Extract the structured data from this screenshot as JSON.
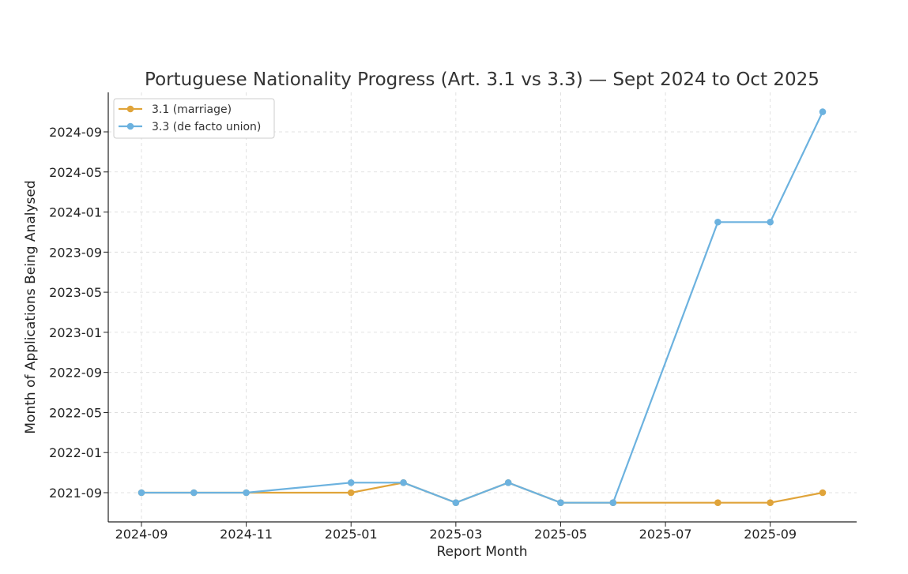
{
  "chart_data": {
    "type": "line",
    "title": "Portuguese Nationality Progress (Art. 3.1 vs 3.3) — Sept 2024 to Oct 2025",
    "xlabel": "Report Month",
    "ylabel": "Month of Applications Being Analysed",
    "x_ticks": [
      "2024-09",
      "2024-11",
      "2025-01",
      "2025-03",
      "2025-05",
      "2025-07",
      "2025-09"
    ],
    "y_ticks": [
      "2021-09",
      "2022-01",
      "2022-05",
      "2022-09",
      "2023-01",
      "2023-05",
      "2023-09",
      "2024-01",
      "2024-05",
      "2024-09"
    ],
    "grid": true,
    "legend_position": "top-left",
    "series": [
      {
        "name": "3.1 (marriage)",
        "color": "#e0a43a",
        "points": [
          {
            "x": "2024-09",
            "y": "2021-09"
          },
          {
            "x": "2024-10",
            "y": "2021-09"
          },
          {
            "x": "2024-11",
            "y": "2021-09"
          },
          {
            "x": "2025-01",
            "y": "2021-09"
          },
          {
            "x": "2025-02",
            "y": "2021-10"
          },
          {
            "x": "2025-03",
            "y": "2021-08"
          },
          {
            "x": "2025-04",
            "y": "2021-10"
          },
          {
            "x": "2025-05",
            "y": "2021-08"
          },
          {
            "x": "2025-06",
            "y": "2021-08"
          },
          {
            "x": "2025-08",
            "y": "2021-08"
          },
          {
            "x": "2025-09",
            "y": "2021-08"
          },
          {
            "x": "2025-10",
            "y": "2021-09"
          }
        ]
      },
      {
        "name": "3.3 (de facto union)",
        "color": "#6cb2df",
        "points": [
          {
            "x": "2024-09",
            "y": "2021-09"
          },
          {
            "x": "2024-10",
            "y": "2021-09"
          },
          {
            "x": "2024-11",
            "y": "2021-09"
          },
          {
            "x": "2025-01",
            "y": "2021-10"
          },
          {
            "x": "2025-02",
            "y": "2021-10"
          },
          {
            "x": "2025-03",
            "y": "2021-08"
          },
          {
            "x": "2025-04",
            "y": "2021-10"
          },
          {
            "x": "2025-05",
            "y": "2021-08"
          },
          {
            "x": "2025-06",
            "y": "2021-08"
          },
          {
            "x": "2025-08",
            "y": "2023-12"
          },
          {
            "x": "2025-09",
            "y": "2023-12"
          },
          {
            "x": "2025-10",
            "y": "2024-11"
          }
        ]
      }
    ]
  }
}
